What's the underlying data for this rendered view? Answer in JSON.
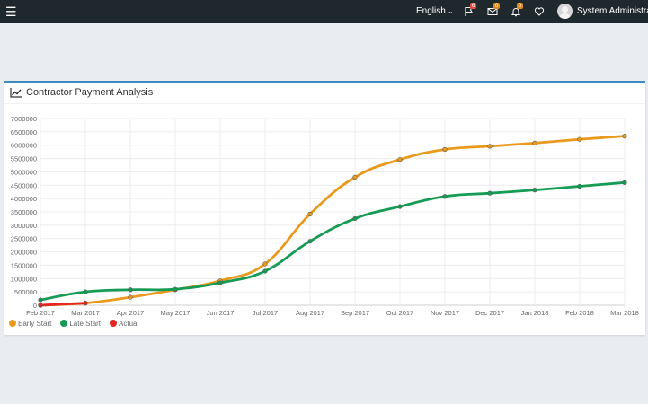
{
  "topbar": {
    "language": "English",
    "flag_badge": "6",
    "mail_badge": "0",
    "bell_badge": "0",
    "user_name": "System Administrator"
  },
  "panel": {
    "title": "Contractor Payment Analysis",
    "collapse_label": "−"
  },
  "chart_data": {
    "type": "line",
    "title": "",
    "xlabel": "",
    "ylabel": "",
    "categories": [
      "Feb 2017",
      "Mar 2017",
      "Apr 2017",
      "May 2017",
      "Jun 2017",
      "Jul 2017",
      "Aug 2017",
      "Sep 2017",
      "Oct 2017",
      "Nov 2017",
      "Dec 2017",
      "Jan 2018",
      "Feb 2018",
      "Mar 2018"
    ],
    "ylim": [
      0,
      7000000
    ],
    "yticks": [
      "0",
      "500000",
      "1000000",
      "1500000",
      "2000000",
      "2500000",
      "3000000",
      "3500000",
      "4000000",
      "4500000",
      "5000000",
      "5500000",
      "6000000",
      "6500000",
      "7000000"
    ],
    "grid": true,
    "legend_position": "bottom-left",
    "series": [
      {
        "name": "Early Start",
        "color": "#e99a1d",
        "values": [
          0,
          80000,
          300000,
          580000,
          920000,
          1550000,
          3420000,
          4800000,
          5460000,
          5840000,
          5960000,
          6080000,
          6220000,
          6340000
        ]
      },
      {
        "name": "Late Start",
        "color": "#169b55",
        "values": [
          200000,
          500000,
          580000,
          600000,
          840000,
          1280000,
          2400000,
          3250000,
          3700000,
          4080000,
          4200000,
          4320000,
          4460000,
          4600000
        ]
      },
      {
        "name": "Actual",
        "color": "#e3281f",
        "values": [
          0,
          80000,
          null,
          null,
          null,
          null,
          null,
          null,
          null,
          null,
          null,
          null,
          null,
          null
        ]
      }
    ]
  }
}
